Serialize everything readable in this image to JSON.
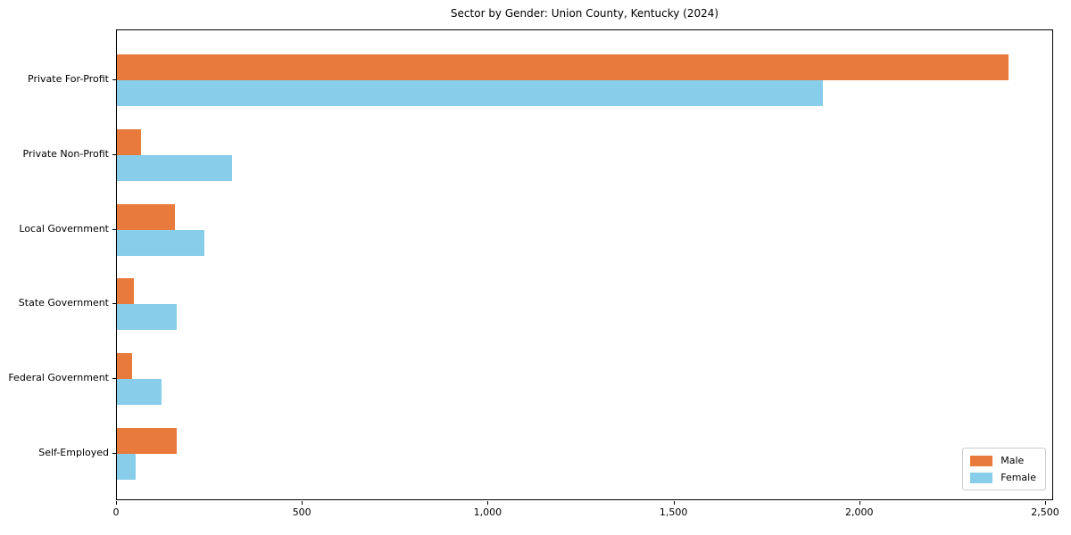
{
  "chart_data": {
    "type": "bar",
    "orientation": "horizontal",
    "title": "Sector by Gender: Union County, Kentucky (2024)",
    "categories": [
      "Private For-Profit",
      "Private Non-Profit",
      "Local Government",
      "State Government",
      "Federal Government",
      "Self-Employed"
    ],
    "series": [
      {
        "name": "Male",
        "color": "#E87A3C",
        "values": [
          2400,
          65,
          155,
          45,
          40,
          160
        ]
      },
      {
        "name": "Female",
        "color": "#88CDE9",
        "values": [
          1900,
          310,
          235,
          160,
          120,
          50
        ]
      }
    ],
    "xlabel": "",
    "ylabel": "",
    "xlim": [
      0,
      2520
    ],
    "x_ticks": [
      {
        "value": 0,
        "label": "0"
      },
      {
        "value": 500,
        "label": "500"
      },
      {
        "value": 1000,
        "label": "1,000"
      },
      {
        "value": 1500,
        "label": "1,500"
      },
      {
        "value": 2000,
        "label": "2,000"
      },
      {
        "value": 2500,
        "label": "2,500"
      }
    ],
    "legend": {
      "position": "lower right",
      "labels": [
        "Male",
        "Female"
      ]
    },
    "grid": false,
    "colors": {
      "background": "#ffffff",
      "axis": "#000000",
      "legend_border": "#cccccc"
    }
  }
}
